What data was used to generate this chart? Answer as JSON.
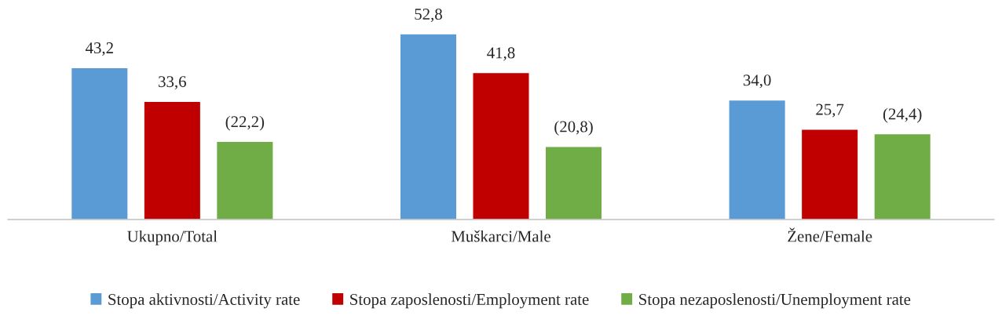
{
  "chart_data": {
    "type": "bar",
    "categories": [
      "Ukupno/Total",
      "Muškarci/Male",
      "Žene/Female"
    ],
    "series": [
      {
        "name": "Stopa aktivnosti/Activity rate",
        "color": "#5b9bd5",
        "values": [
          43.2,
          52.8,
          34.0
        ],
        "value_labels": [
          "43,2",
          "52,8",
          "34,0"
        ]
      },
      {
        "name": "Stopa zaposlenosti/Employment rate",
        "color": "#c00000",
        "values": [
          33.6,
          41.8,
          25.7
        ],
        "value_labels": [
          "33,6",
          "41,8",
          "25,7"
        ]
      },
      {
        "name": "Stopa nezaposlenosti/Unemployment rate",
        "color": "#70ad47",
        "values": [
          22.2,
          20.8,
          24.4
        ],
        "value_labels": [
          "(22,2)",
          "(20,8)",
          "(24,4)"
        ]
      }
    ],
    "tick_labels": "x",
    "grid": false,
    "legend": "bottom"
  }
}
